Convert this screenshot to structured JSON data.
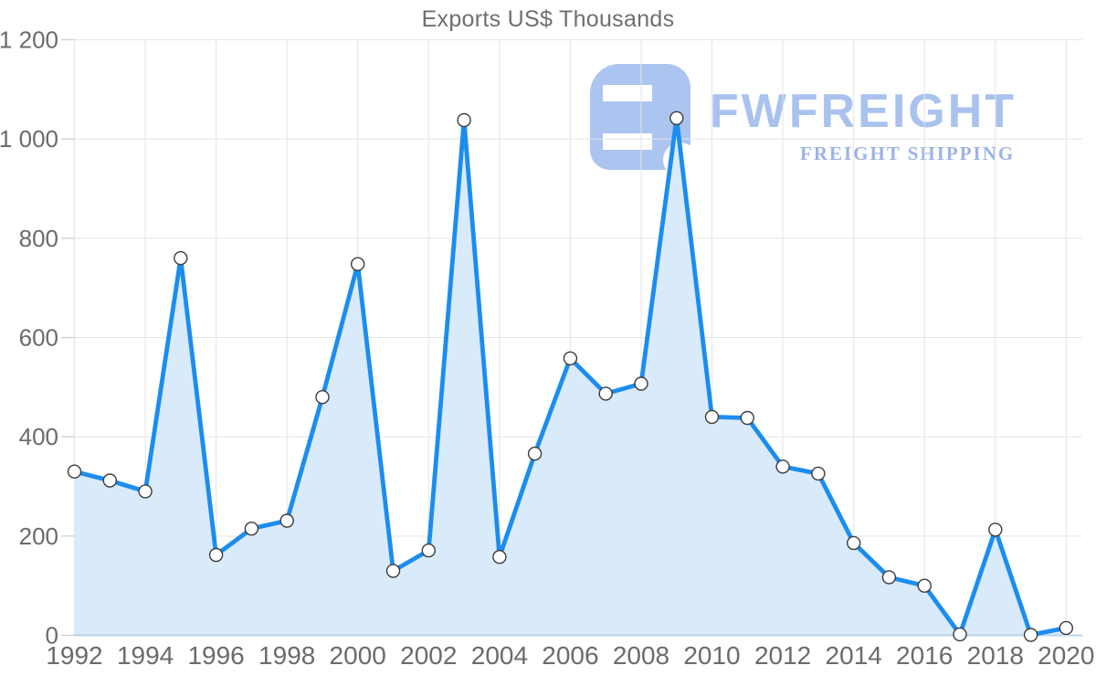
{
  "title": "Exports US$ Thousands",
  "watermark": {
    "brand": "FWFREIGHT",
    "tagline": "FREIGHT SHIPPING",
    "logo_icon": "fw-freight-mark-icon"
  },
  "chart_data": {
    "type": "area",
    "title": "Exports US$ Thousands",
    "series_name": "Exports US$ Thousands",
    "x": [
      1992,
      1993,
      1994,
      1995,
      1996,
      1997,
      1998,
      1999,
      2000,
      2001,
      2002,
      2003,
      2004,
      2005,
      2006,
      2007,
      2008,
      2009,
      2010,
      2011,
      2012,
      2013,
      2014,
      2015,
      2016,
      2017,
      2018,
      2019,
      2020
    ],
    "values": [
      330,
      312,
      290,
      760,
      162,
      215,
      231,
      480,
      748,
      130,
      171,
      1038,
      158,
      366,
      558,
      487,
      507,
      1042,
      440,
      438,
      340,
      326,
      186,
      117,
      100,
      2,
      213,
      1,
      15
    ],
    "xlabel": "",
    "ylabel": "",
    "ylim": [
      0,
      1200
    ],
    "yticks": [
      0,
      200,
      400,
      600,
      800,
      1000,
      1200
    ],
    "ytick_labels": [
      "0",
      "200",
      "400",
      "600",
      "800",
      "1 000",
      "1 200"
    ],
    "xtick_years": [
      1992,
      1994,
      1996,
      1998,
      2000,
      2002,
      2004,
      2006,
      2008,
      2010,
      2012,
      2014,
      2016,
      2018,
      2020
    ],
    "xtick_labels": [
      "1992",
      "1994",
      "1996",
      "1998",
      "2000",
      "2002",
      "2004",
      "2006",
      "2008",
      "2010",
      "2012",
      "2014",
      "2016",
      "2018",
      "2020"
    ],
    "grid": true,
    "legend": "none",
    "marker": "circle",
    "colors": {
      "line": "#1b8def",
      "area_fill": "#d9eafb",
      "marker_fill": "#ffffff",
      "marker_stroke": "#3c3c3c",
      "grid": "#e5e5e5",
      "tick": "#cccccc",
      "zero_line": "#b7d4ef",
      "axis_text": "#6b6b6b",
      "title_text": "#6f6f6f",
      "logo": "#abc4f0",
      "tagline_text": "#9cb4e5"
    }
  }
}
